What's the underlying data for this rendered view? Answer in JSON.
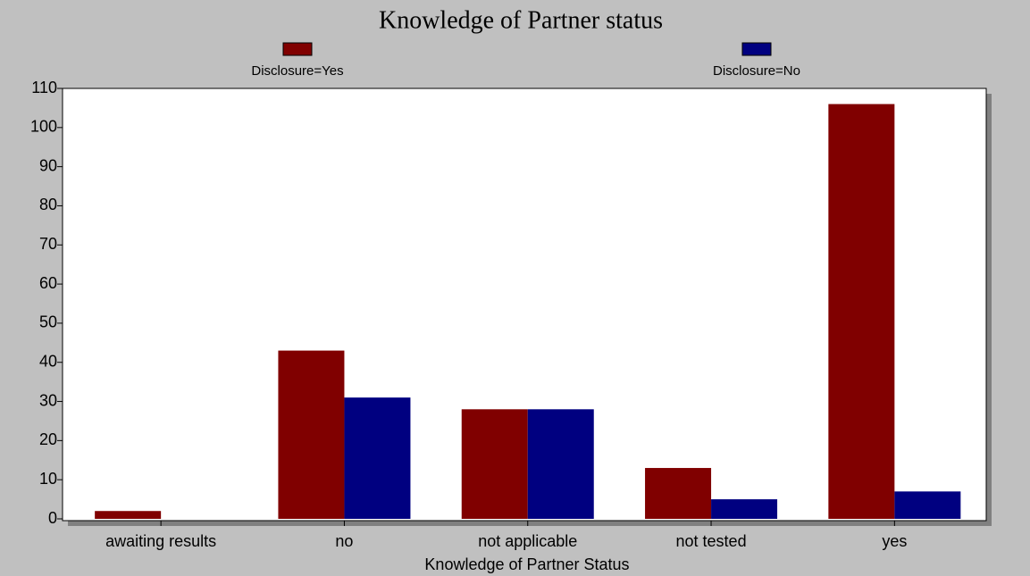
{
  "chart_data": {
    "type": "bar",
    "title": "Knowledge of Partner status",
    "x_label": "Knowledge of Partner Status",
    "categories": [
      "awaiting results",
      "no",
      "not applicable",
      "not tested",
      "yes"
    ],
    "series": [
      {
        "name": "Disclosure=Yes",
        "color": "#800000",
        "values": [
          2,
          43,
          28,
          13,
          106
        ]
      },
      {
        "name": "Disclosure=No",
        "color": "#000080",
        "values": [
          0,
          31,
          28,
          5,
          7
        ]
      }
    ],
    "ylim": [
      0,
      110
    ],
    "yticks": [
      0,
      10,
      20,
      30,
      40,
      50,
      60,
      70,
      80,
      90,
      100,
      110
    ],
    "grid": false
  }
}
